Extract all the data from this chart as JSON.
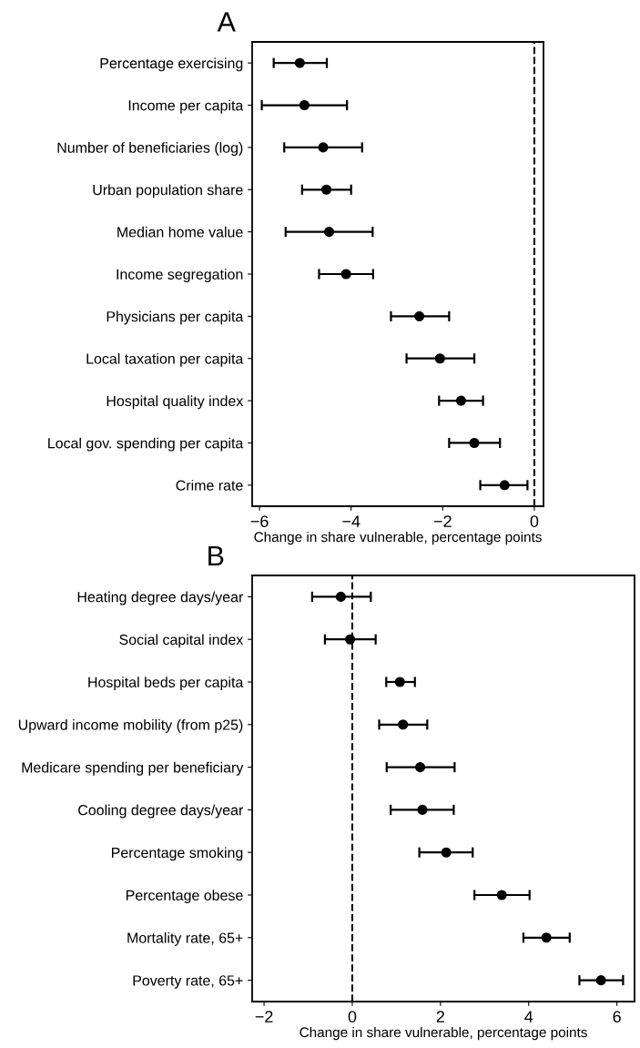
{
  "chart_data": [
    {
      "type": "scatter",
      "title": "A",
      "orientation": "horizontal",
      "xlabel": "Change in share vulnerable, percentage points",
      "categories": [
        "Percentage exercising",
        "Income per capita",
        "Number of beneficiaries (log)",
        "Urban population share",
        "Median home value",
        "Income segregation",
        "Physicians per capita",
        "Local taxation per capita",
        "Hospital quality index",
        "Local gov. spending per capita",
        "Crime rate"
      ],
      "values": [
        -5.12,
        -5.02,
        -4.61,
        -4.54,
        -4.48,
        -4.11,
        -2.51,
        -2.06,
        -1.6,
        -1.31,
        -0.65
      ],
      "errors": [
        [
          -5.69,
          -4.53
        ],
        [
          -5.95,
          -4.09
        ],
        [
          -5.46,
          -3.76
        ],
        [
          -5.07,
          -4.0
        ],
        [
          -5.43,
          -3.53
        ],
        [
          -4.7,
          -3.52
        ],
        [
          -3.13,
          -1.86
        ],
        [
          -2.79,
          -1.31
        ],
        [
          -2.08,
          -1.12
        ],
        [
          -1.86,
          -0.75
        ],
        [
          -1.18,
          -0.15
        ]
      ],
      "color": "#000000",
      "marker": "circle",
      "grid": false,
      "legend": false,
      "xlim": [
        -6.16,
        0.2
      ],
      "xticks": [
        {
          "value": -6,
          "label": "−6"
        },
        {
          "value": -4,
          "label": "−4"
        },
        {
          "value": -2,
          "label": "−2"
        },
        0
      ],
      "ref_lines": [
        {
          "axis": "x",
          "value": 0,
          "line_style": "dashed",
          "color": "#000000"
        }
      ]
    },
    {
      "type": "scatter",
      "title": "B",
      "orientation": "horizontal",
      "xlabel": "Change in share vulnerable, percentage points",
      "categories": [
        "Heating degree days/year",
        "Social capital index",
        "Hospital beds per capita",
        "Upward income mobility (from p25)",
        "Medicare spending per beneficiary",
        "Cooling degree days/year",
        "Percentage smoking",
        "Percentage obese",
        "Mortality rate, 65+",
        "Poverty rate, 65+"
      ],
      "values": [
        -0.26,
        -0.05,
        1.08,
        1.15,
        1.54,
        1.59,
        2.13,
        3.39,
        4.4,
        5.64
      ],
      "errors": [
        [
          -0.91,
          0.42
        ],
        [
          -0.62,
          0.53
        ],
        [
          0.77,
          1.42
        ],
        [
          0.61,
          1.7
        ],
        [
          0.78,
          2.32
        ],
        [
          0.87,
          2.3
        ],
        [
          1.52,
          2.73
        ],
        [
          2.77,
          4.02
        ],
        [
          3.88,
          4.93
        ],
        [
          5.15,
          6.14
        ]
      ],
      "color": "#000000",
      "marker": "circle",
      "grid": false,
      "legend": false,
      "xlim": [
        -2.27,
        6.4
      ],
      "xticks": [
        {
          "value": -2,
          "label": "−2"
        },
        0,
        2,
        4,
        6
      ],
      "ref_lines": [
        {
          "axis": "x",
          "value": 0,
          "line_style": "dashed",
          "color": "#000000"
        }
      ]
    }
  ]
}
